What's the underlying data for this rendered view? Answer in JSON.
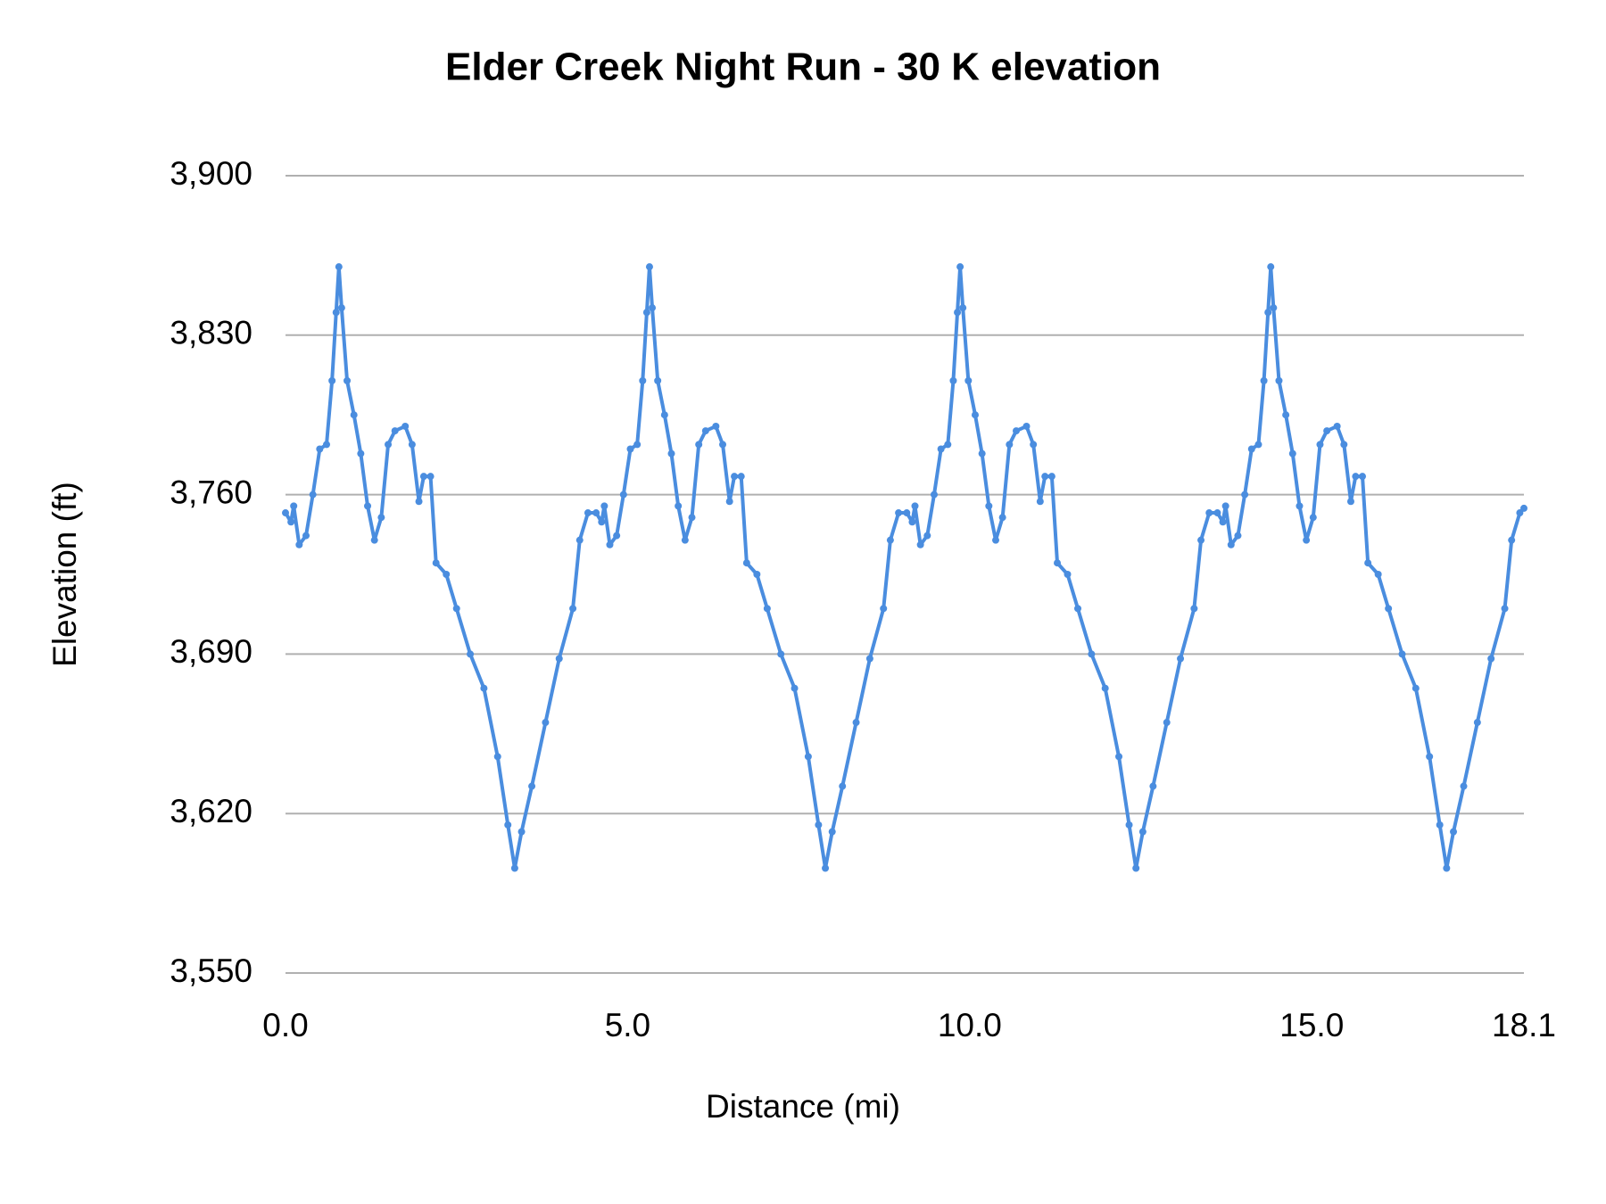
{
  "chart_data": {
    "type": "line",
    "title": "Elder Creek Night Run - 30 K elevation",
    "x_label": "Distance (mi)",
    "y_label": "Elevation (ft)",
    "xlim": [
      0,
      18.1
    ],
    "xticks": [
      {
        "value": 0,
        "label": "0.0"
      },
      {
        "value": 5,
        "label": "5.0"
      },
      {
        "value": 10,
        "label": "10.0"
      },
      {
        "value": 15,
        "label": "15.0"
      },
      18.1
    ],
    "ylim": [
      3550,
      3900
    ],
    "yticks": [
      {
        "value": 3550,
        "label": "3,550"
      },
      {
        "value": 3620,
        "label": "3,620"
      },
      {
        "value": 3690,
        "label": "3,690"
      },
      {
        "value": 3760,
        "label": "3,760"
      },
      {
        "value": 3830,
        "label": "3,830"
      },
      {
        "value": 3900,
        "label": "3,900"
      }
    ],
    "grid": true,
    "x": [
      0,
      0.08,
      0.12,
      0.2,
      0.3,
      0.4,
      0.5,
      0.6,
      0.68,
      0.74,
      0.78,
      0.82,
      0.9,
      1.0,
      1.1,
      1.2,
      1.3,
      1.4,
      1.5,
      1.6,
      1.75,
      1.85,
      1.95,
      2.02,
      2.12,
      2.2,
      2.35,
      2.5,
      2.7,
      2.9,
      3.1,
      3.25,
      3.35,
      3.45,
      3.6,
      3.8,
      4.0,
      4.2,
      4.3,
      4.42,
      4.54,
      4.62,
      4.66,
      4.74,
      4.84,
      4.94,
      5.04,
      5.14,
      5.22,
      5.28,
      5.32,
      5.36,
      5.44,
      5.54,
      5.64,
      5.74,
      5.84,
      5.94,
      6.04,
      6.14,
      6.29,
      6.39,
      6.49,
      6.56,
      6.66,
      6.74,
      6.89,
      7.04,
      7.24,
      7.44,
      7.64,
      7.79,
      7.89,
      7.99,
      8.14,
      8.34,
      8.54,
      8.74,
      8.84,
      8.96,
      9.08,
      9.16,
      9.2,
      9.28,
      9.38,
      9.48,
      9.58,
      9.68,
      9.76,
      9.82,
      9.86,
      9.9,
      9.98,
      10.08,
      10.18,
      10.28,
      10.38,
      10.48,
      10.58,
      10.68,
      10.83,
      10.93,
      11.03,
      11.1,
      11.2,
      11.28,
      11.43,
      11.58,
      11.78,
      11.98,
      12.18,
      12.33,
      12.43,
      12.53,
      12.68,
      12.88,
      13.08,
      13.28,
      13.38,
      13.5,
      13.62,
      13.7,
      13.74,
      13.82,
      13.92,
      14.02,
      14.12,
      14.22,
      14.3,
      14.36,
      14.4,
      14.44,
      14.52,
      14.62,
      14.72,
      14.82,
      14.92,
      15.02,
      15.12,
      15.22,
      15.37,
      15.47,
      15.57,
      15.64,
      15.74,
      15.82,
      15.97,
      16.12,
      16.32,
      16.52,
      16.72,
      16.87,
      16.97,
      17.07,
      17.22,
      17.42,
      17.62,
      17.82,
      17.92,
      18.04,
      18.1
    ],
    "series": [
      {
        "color": "#4a8ddf",
        "values": [
          3752,
          3748,
          3755,
          3738,
          3742,
          3760,
          3780,
          3782,
          3810,
          3840,
          3860,
          3842,
          3810,
          3795,
          3778,
          3755,
          3740,
          3750,
          3782,
          3788,
          3790,
          3782,
          3757,
          3768,
          3768,
          3730,
          3725,
          3710,
          3690,
          3675,
          3645,
          3615,
          3596,
          3612,
          3632,
          3660,
          3688,
          3710,
          3740,
          3752,
          3752,
          3748,
          3755,
          3738,
          3742,
          3760,
          3780,
          3782,
          3810,
          3840,
          3860,
          3842,
          3810,
          3795,
          3778,
          3755,
          3740,
          3750,
          3782,
          3788,
          3790,
          3782,
          3757,
          3768,
          3768,
          3730,
          3725,
          3710,
          3690,
          3675,
          3645,
          3615,
          3596,
          3612,
          3632,
          3660,
          3688,
          3710,
          3740,
          3752,
          3752,
          3748,
          3755,
          3738,
          3742,
          3760,
          3780,
          3782,
          3810,
          3840,
          3860,
          3842,
          3810,
          3795,
          3778,
          3755,
          3740,
          3750,
          3782,
          3788,
          3790,
          3782,
          3757,
          3768,
          3768,
          3730,
          3725,
          3710,
          3690,
          3675,
          3645,
          3615,
          3596,
          3612,
          3632,
          3660,
          3688,
          3710,
          3740,
          3752,
          3752,
          3748,
          3755,
          3738,
          3742,
          3760,
          3780,
          3782,
          3810,
          3840,
          3860,
          3842,
          3810,
          3795,
          3778,
          3755,
          3740,
          3750,
          3782,
          3788,
          3790,
          3782,
          3757,
          3768,
          3768,
          3730,
          3725,
          3710,
          3690,
          3675,
          3645,
          3615,
          3596,
          3612,
          3632,
          3660,
          3688,
          3710,
          3740,
          3752,
          3754
        ]
      }
    ]
  }
}
